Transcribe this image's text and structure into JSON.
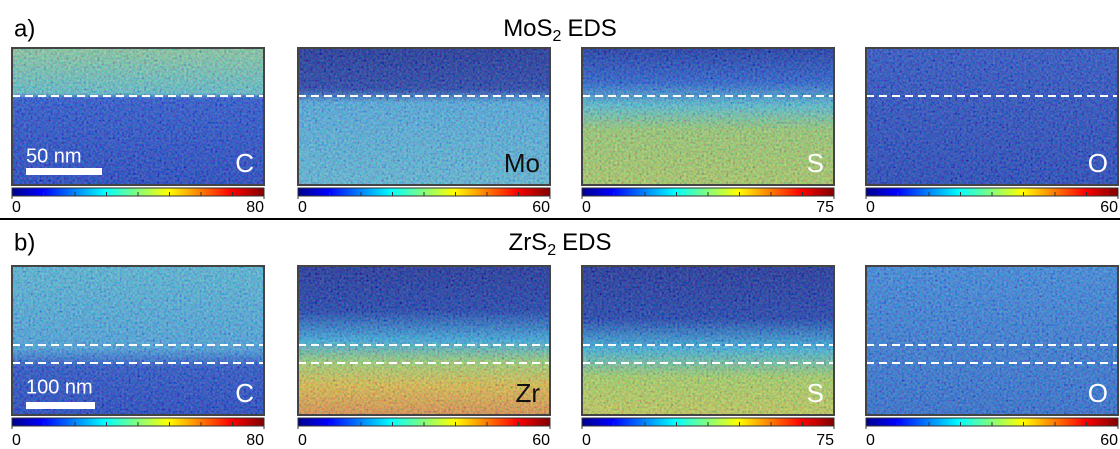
{
  "panels": [
    {
      "label": "a)",
      "title": {
        "formula": "MoS",
        "subscript": "2",
        "suffix": "EDS"
      },
      "scale_bar": "50 nm",
      "maps": [
        {
          "element": "C",
          "colorbar": {
            "min": 0,
            "max": 80
          }
        },
        {
          "element": "Mo",
          "colorbar": {
            "min": 0,
            "max": 60
          }
        },
        {
          "element": "S",
          "colorbar": {
            "min": 0,
            "max": 75
          }
        },
        {
          "element": "O",
          "colorbar": {
            "min": 0,
            "max": 60
          }
        }
      ]
    },
    {
      "label": "b)",
      "title": {
        "formula": "ZrS",
        "subscript": "2",
        "suffix": "EDS"
      },
      "scale_bar": "100 nm",
      "maps": [
        {
          "element": "C",
          "colorbar": {
            "min": 0,
            "max": 80
          }
        },
        {
          "element": "Zr",
          "colorbar": {
            "min": 0,
            "max": 60
          }
        },
        {
          "element": "S",
          "colorbar": {
            "min": 0,
            "max": 75
          }
        },
        {
          "element": "O",
          "colorbar": {
            "min": 0,
            "max": 60
          }
        }
      ]
    }
  ]
}
